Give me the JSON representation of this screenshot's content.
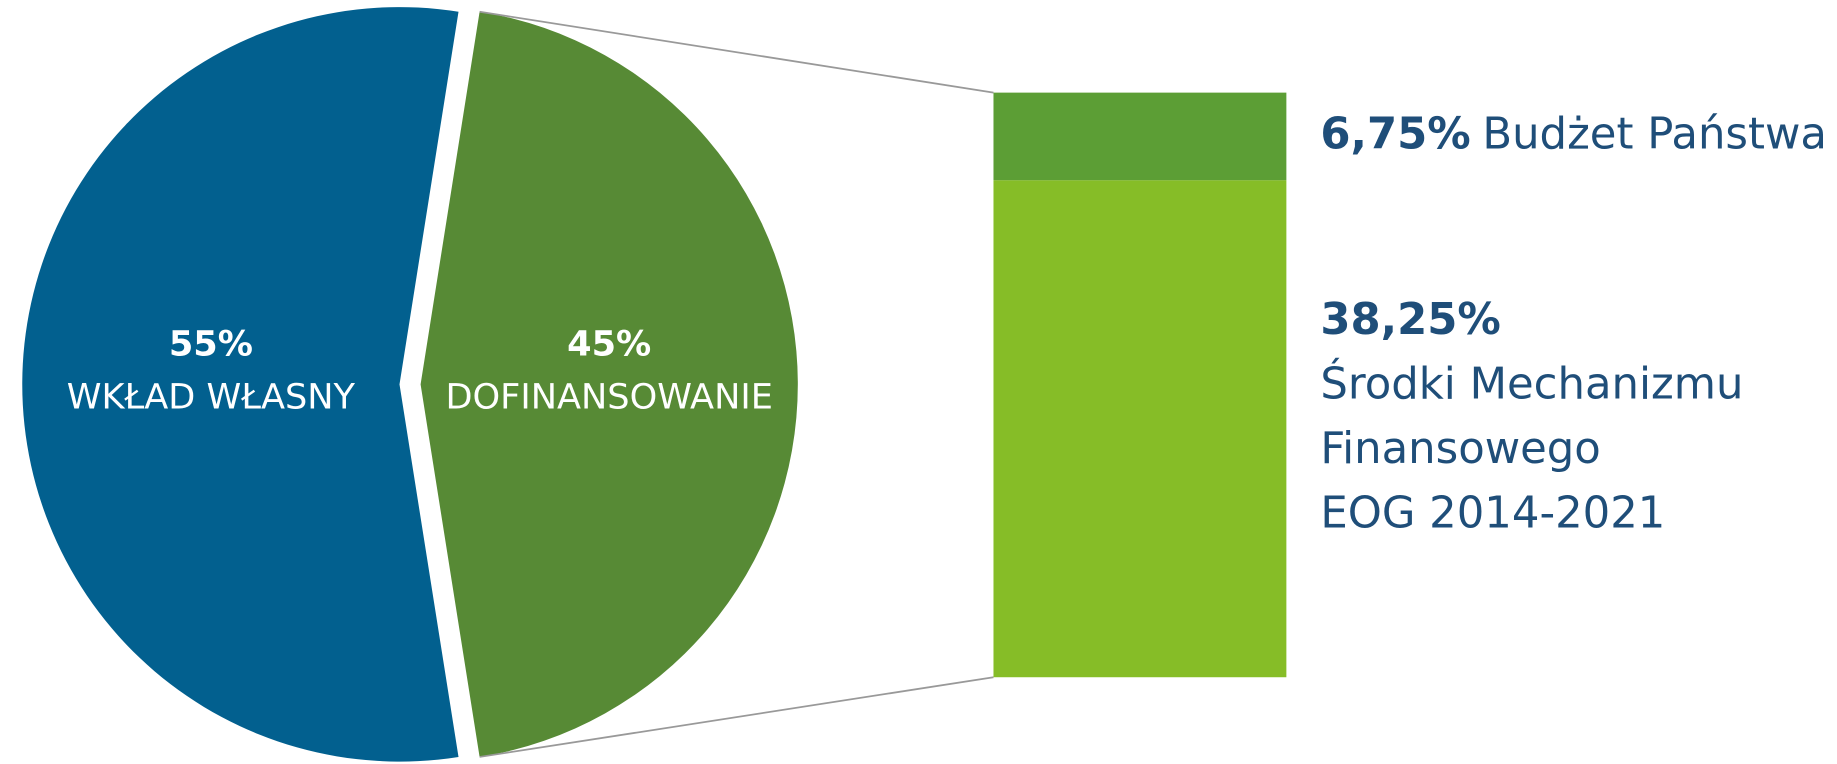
{
  "chart_data": {
    "type": "pie-of-bar",
    "slices": [
      {
        "name": "WKŁAD WŁASNY",
        "value": 55,
        "value_label": "55%",
        "color": "#02608f"
      },
      {
        "name": "DOFINANSOWANIE",
        "value": 45,
        "value_label": "45%",
        "color": "#578a35",
        "exploded": true
      }
    ],
    "breakdown": [
      {
        "name": [
          "Budżet Państwa"
        ],
        "value": 6.75,
        "value_label": "6,75%",
        "color": "#5c9e35"
      },
      {
        "name": [
          "Środki Mechanizmu",
          "Finansowego",
          "EOG 2014-2021"
        ],
        "value": 38.25,
        "value_label": "38,25%",
        "color": "#86bd27"
      }
    ]
  }
}
